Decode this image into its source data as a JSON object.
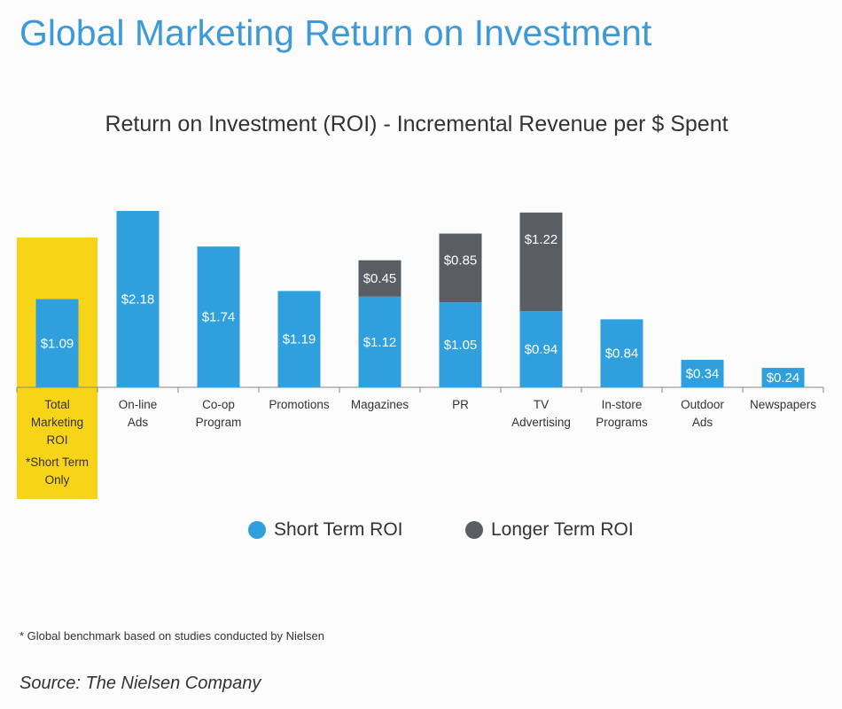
{
  "header": {
    "title": "Global Marketing Return on Investment",
    "subtitle": "Return on Investment (ROI) - Incremental Revenue per $ Spent"
  },
  "chart_data": {
    "type": "bar",
    "stacked": true,
    "categories": [
      [
        "Total",
        "Marketing",
        "ROI",
        "*Short Term",
        "Only"
      ],
      [
        "On-line",
        "Ads"
      ],
      [
        "Co-op",
        "Program"
      ],
      [
        "Promotions"
      ],
      [
        "Magazines"
      ],
      [
        "PR"
      ],
      [
        "TV",
        "Advertising"
      ],
      [
        "In-store",
        "Programs"
      ],
      [
        "Outdoor",
        "Ads"
      ],
      [
        "Newspapers"
      ]
    ],
    "series": [
      {
        "name": "Short Term ROI",
        "values": [
          1.09,
          2.18,
          1.74,
          1.19,
          1.12,
          1.05,
          0.94,
          0.84,
          0.34,
          0.24
        ],
        "labels": [
          "$1.09",
          "$2.18",
          "$1.74",
          "$1.19",
          "$1.12",
          "$1.05",
          "$0.94",
          "$0.84",
          "$0.34",
          "$0.24"
        ]
      },
      {
        "name": "Longer Term ROI",
        "values": [
          null,
          null,
          null,
          null,
          0.45,
          0.85,
          1.22,
          null,
          null,
          null
        ],
        "labels": [
          null,
          null,
          null,
          null,
          "$0.45",
          "$0.85",
          "$1.22",
          null,
          null,
          null
        ]
      }
    ],
    "highlight_category_index": 0,
    "ylim": [
      0,
      2.18
    ],
    "grid": false,
    "legend_position": "bottom-center"
  },
  "colors": {
    "short_term": "#2f9fdd",
    "longer_term": "#5a5d63",
    "highlight": "#f7d417",
    "title": "#3d9ad8"
  },
  "legend": [
    {
      "label": "Short Term ROI",
      "color": "#2f9fdd"
    },
    {
      "label": "Longer Term ROI",
      "color": "#5a5d63"
    }
  ],
  "footnote": "* Global benchmark based on studies conducted by Nielsen",
  "source": "Source: The Nielsen Company"
}
